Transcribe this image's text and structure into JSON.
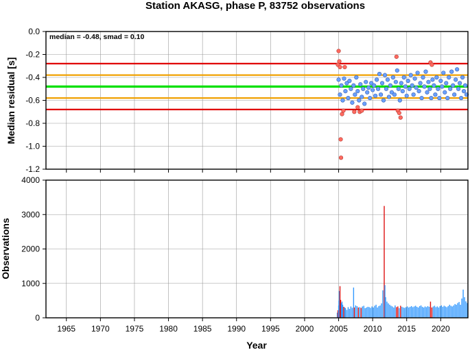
{
  "chart_data": [
    {
      "type": "scatter",
      "title": "Station AKASG, phase P, 83752 observations",
      "ylabel": "Median residual [s]",
      "annotation": "median = -0.48, smad = 0.10",
      "xlim": [
        1962,
        2024
      ],
      "ylim": [
        -1.2,
        0.0
      ],
      "yticks": [
        0.0,
        -0.2,
        -0.4,
        -0.6,
        -0.8,
        -1.0,
        -1.2
      ],
      "ytick_labels": [
        "0.0",
        "-0.2",
        "-0.4",
        "-0.6",
        "-0.8",
        "-1.0",
        "-1.2"
      ],
      "grid": true,
      "reference_lines": [
        {
          "value": -0.48,
          "role": "median",
          "color": "#00e000"
        },
        {
          "value": -0.38,
          "role": "+1 smad",
          "color": "#f0a000"
        },
        {
          "value": -0.58,
          "role": "-1 smad",
          "color": "#f0a000"
        },
        {
          "value": -0.28,
          "role": "+2 smad",
          "color": "#e00000"
        },
        {
          "value": -0.68,
          "role": "-2 smad",
          "color": "#e00000"
        }
      ],
      "series": [
        {
          "color": "#6aa0ff",
          "points": [
            [
              2005.0,
              -0.42
            ],
            [
              2005.2,
              -0.55
            ],
            [
              2005.4,
              -0.47
            ],
            [
              2005.6,
              -0.6
            ],
            [
              2005.8,
              -0.41
            ],
            [
              2006.0,
              -0.52
            ],
            [
              2006.2,
              -0.45
            ],
            [
              2006.4,
              -0.58
            ],
            [
              2006.6,
              -0.43
            ],
            [
              2006.8,
              -0.5
            ],
            [
              2007.0,
              -0.62
            ],
            [
              2007.2,
              -0.47
            ],
            [
              2007.4,
              -0.55
            ],
            [
              2007.6,
              -0.4
            ],
            [
              2007.8,
              -0.52
            ],
            [
              2008.0,
              -0.6
            ],
            [
              2008.2,
              -0.46
            ],
            [
              2008.4,
              -0.57
            ],
            [
              2008.6,
              -0.5
            ],
            [
              2008.8,
              -0.63
            ],
            [
              2009.0,
              -0.44
            ],
            [
              2009.2,
              -0.53
            ],
            [
              2009.4,
              -0.49
            ],
            [
              2009.6,
              -0.58
            ],
            [
              2009.8,
              -0.45
            ],
            [
              2010.0,
              -0.51
            ],
            [
              2010.2,
              -0.47
            ],
            [
              2010.4,
              -0.56
            ],
            [
              2010.6,
              -0.42
            ],
            [
              2010.8,
              -0.5
            ],
            [
              2011.0,
              -0.37
            ],
            [
              2011.2,
              -0.55
            ],
            [
              2011.4,
              -0.45
            ],
            [
              2011.6,
              -0.6
            ],
            [
              2011.8,
              -0.38
            ],
            [
              2012.0,
              -0.5
            ],
            [
              2012.2,
              -0.42
            ],
            [
              2012.4,
              -0.57
            ],
            [
              2012.6,
              -0.47
            ],
            [
              2012.8,
              -0.53
            ],
            [
              2013.0,
              -0.4
            ],
            [
              2013.2,
              -0.55
            ],
            [
              2013.4,
              -0.44
            ],
            [
              2013.6,
              -0.34
            ],
            [
              2013.8,
              -0.5
            ],
            [
              2014.0,
              -0.6
            ],
            [
              2014.2,
              -0.45
            ],
            [
              2014.4,
              -0.52
            ],
            [
              2014.6,
              -0.4
            ],
            [
              2014.8,
              -0.48
            ],
            [
              2015.0,
              -0.56
            ],
            [
              2015.2,
              -0.43
            ],
            [
              2015.4,
              -0.5
            ],
            [
              2015.6,
              -0.38
            ],
            [
              2015.8,
              -0.47
            ],
            [
              2016.0,
              -0.55
            ],
            [
              2016.2,
              -0.41
            ],
            [
              2016.4,
              -0.49
            ],
            [
              2016.6,
              -0.36
            ],
            [
              2016.8,
              -0.52
            ],
            [
              2017.0,
              -0.45
            ],
            [
              2017.2,
              -0.58
            ],
            [
              2017.4,
              -0.4
            ],
            [
              2017.6,
              -0.48
            ],
            [
              2017.8,
              -0.35
            ],
            [
              2018.0,
              -0.53
            ],
            [
              2018.2,
              -0.44
            ],
            [
              2018.4,
              -0.5
            ],
            [
              2018.6,
              -0.58
            ],
            [
              2018.8,
              -0.42
            ],
            [
              2019.0,
              -0.47
            ],
            [
              2019.2,
              -0.55
            ],
            [
              2019.4,
              -0.4
            ],
            [
              2019.6,
              -0.5
            ],
            [
              2019.8,
              -0.58
            ],
            [
              2020.0,
              -0.43
            ],
            [
              2020.2,
              -0.48
            ],
            [
              2020.4,
              -0.36
            ],
            [
              2020.6,
              -0.53
            ],
            [
              2020.8,
              -0.45
            ],
            [
              2021.0,
              -0.58
            ],
            [
              2021.2,
              -0.4
            ],
            [
              2021.4,
              -0.5
            ],
            [
              2021.6,
              -0.35
            ],
            [
              2021.8,
              -0.47
            ],
            [
              2022.0,
              -0.55
            ],
            [
              2022.2,
              -0.42
            ],
            [
              2022.4,
              -0.33
            ],
            [
              2022.6,
              -0.5
            ],
            [
              2022.8,
              -0.45
            ],
            [
              2023.0,
              -0.58
            ],
            [
              2023.2,
              -0.4
            ],
            [
              2023.4,
              -0.52
            ],
            [
              2023.6,
              -0.47
            ],
            [
              2023.8,
              -0.55
            ]
          ]
        },
        {
          "color": "#ff6a60",
          "points": [
            [
              2004.9,
              -0.29
            ],
            [
              2005.0,
              -0.17
            ],
            [
              2005.1,
              -0.26
            ],
            [
              2005.2,
              -0.31
            ],
            [
              2005.3,
              -0.94
            ],
            [
              2005.35,
              -1.1
            ],
            [
              2005.5,
              -0.72
            ],
            [
              2005.7,
              -0.69
            ],
            [
              2005.9,
              -0.31
            ],
            [
              2007.3,
              -0.7
            ],
            [
              2007.8,
              -0.66
            ],
            [
              2008.1,
              -0.7
            ],
            [
              2008.4,
              -0.69
            ],
            [
              2013.5,
              -0.22
            ],
            [
              2013.7,
              -0.69
            ],
            [
              2013.9,
              -0.71
            ],
            [
              2014.1,
              -0.75
            ],
            [
              2018.5,
              -0.27
            ],
            [
              2018.7,
              -0.29
            ]
          ]
        }
      ]
    },
    {
      "type": "bar",
      "ylabel": "Observations",
      "xlabel": "Year",
      "xlim": [
        1962,
        2024
      ],
      "ylim": [
        0,
        4000
      ],
      "xticks": [
        1965,
        1970,
        1975,
        1980,
        1985,
        1990,
        1995,
        2000,
        2005,
        2010,
        2015,
        2020
      ],
      "xtick_labels": [
        "1965",
        "1970",
        "1975",
        "1980",
        "1985",
        "1990",
        "1995",
        "2000",
        "2005",
        "2010",
        "2015",
        "2020"
      ],
      "yticks": [
        0,
        1000,
        2000,
        3000,
        4000
      ],
      "ytick_labels": [
        "0",
        "1000",
        "2000",
        "3000",
        "4000"
      ],
      "grid": true,
      "colors": {
        "normal": "#3399ff",
        "outlier": "#dd1111"
      },
      "bars": [
        [
          2004.8,
          150,
          0
        ],
        [
          2004.9,
          220,
          1
        ],
        [
          2005.0,
          360,
          0
        ],
        [
          2005.05,
          500,
          0
        ],
        [
          2005.1,
          780,
          0
        ],
        [
          2005.2,
          920,
          1
        ],
        [
          2005.3,
          520,
          1
        ],
        [
          2005.4,
          430,
          0
        ],
        [
          2005.5,
          470,
          0
        ],
        [
          2005.6,
          380,
          0
        ],
        [
          2005.75,
          320,
          1
        ],
        [
          2005.9,
          300,
          0
        ],
        [
          2006.0,
          280,
          0
        ],
        [
          2006.2,
          230,
          0
        ],
        [
          2006.4,
          310,
          0
        ],
        [
          2006.6,
          260,
          0
        ],
        [
          2006.8,
          330,
          0
        ],
        [
          2007.0,
          290,
          0
        ],
        [
          2007.2,
          880,
          0
        ],
        [
          2007.3,
          300,
          1
        ],
        [
          2007.5,
          360,
          0
        ],
        [
          2007.7,
          340,
          0
        ],
        [
          2007.9,
          300,
          1
        ],
        [
          2008.1,
          310,
          0
        ],
        [
          2008.3,
          290,
          1
        ],
        [
          2008.5,
          330,
          0
        ],
        [
          2008.7,
          350,
          0
        ],
        [
          2008.9,
          280,
          0
        ],
        [
          2009.1,
          300,
          0
        ],
        [
          2009.3,
          320,
          0
        ],
        [
          2009.5,
          310,
          0
        ],
        [
          2009.7,
          290,
          0
        ],
        [
          2009.9,
          330,
          0
        ],
        [
          2010.1,
          300,
          0
        ],
        [
          2010.3,
          350,
          0
        ],
        [
          2010.5,
          380,
          0
        ],
        [
          2010.7,
          300,
          0
        ],
        [
          2010.9,
          340,
          0
        ],
        [
          2011.1,
          360,
          0
        ],
        [
          2011.3,
          420,
          0
        ],
        [
          2011.5,
          800,
          0
        ],
        [
          2011.7,
          3250,
          1
        ],
        [
          2011.8,
          950,
          0
        ],
        [
          2011.9,
          600,
          0
        ],
        [
          2012.1,
          470,
          0
        ],
        [
          2012.3,
          420,
          0
        ],
        [
          2012.5,
          380,
          0
        ],
        [
          2012.7,
          350,
          0
        ],
        [
          2012.9,
          330,
          0
        ],
        [
          2013.1,
          300,
          0
        ],
        [
          2013.3,
          360,
          0
        ],
        [
          2013.5,
          310,
          1
        ],
        [
          2013.7,
          330,
          1
        ],
        [
          2013.9,
          280,
          0
        ],
        [
          2014.1,
          350,
          1
        ],
        [
          2014.3,
          320,
          0
        ],
        [
          2014.5,
          300,
          0
        ],
        [
          2014.7,
          290,
          0
        ],
        [
          2014.9,
          310,
          0
        ],
        [
          2015.1,
          330,
          0
        ],
        [
          2015.3,
          300,
          0
        ],
        [
          2015.5,
          320,
          0
        ],
        [
          2015.7,
          340,
          0
        ],
        [
          2015.9,
          310,
          0
        ],
        [
          2016.1,
          330,
          0
        ],
        [
          2016.3,
          350,
          0
        ],
        [
          2016.5,
          320,
          0
        ],
        [
          2016.7,
          300,
          0
        ],
        [
          2016.9,
          340,
          0
        ],
        [
          2017.1,
          360,
          0
        ],
        [
          2017.3,
          320,
          0
        ],
        [
          2017.5,
          300,
          0
        ],
        [
          2017.7,
          330,
          0
        ],
        [
          2017.9,
          310,
          0
        ],
        [
          2018.1,
          340,
          0
        ],
        [
          2018.3,
          320,
          0
        ],
        [
          2018.5,
          470,
          1
        ],
        [
          2018.7,
          300,
          1
        ],
        [
          2018.9,
          330,
          0
        ],
        [
          2019.1,
          350,
          0
        ],
        [
          2019.3,
          310,
          0
        ],
        [
          2019.5,
          330,
          0
        ],
        [
          2019.7,
          300,
          0
        ],
        [
          2019.9,
          340,
          0
        ],
        [
          2020.1,
          360,
          0
        ],
        [
          2020.3,
          320,
          0
        ],
        [
          2020.5,
          350,
          0
        ],
        [
          2020.7,
          330,
          0
        ],
        [
          2020.9,
          310,
          0
        ],
        [
          2021.1,
          340,
          0
        ],
        [
          2021.3,
          380,
          0
        ],
        [
          2021.5,
          350,
          0
        ],
        [
          2021.7,
          330,
          0
        ],
        [
          2021.9,
          360,
          0
        ],
        [
          2022.1,
          400,
          0
        ],
        [
          2022.3,
          380,
          0
        ],
        [
          2022.5,
          430,
          0
        ],
        [
          2022.7,
          460,
          0
        ],
        [
          2022.9,
          380,
          0
        ],
        [
          2023.1,
          560,
          0
        ],
        [
          2023.3,
          820,
          0
        ],
        [
          2023.5,
          600,
          0
        ],
        [
          2023.7,
          480,
          0
        ],
        [
          2023.9,
          430,
          0
        ]
      ]
    }
  ]
}
